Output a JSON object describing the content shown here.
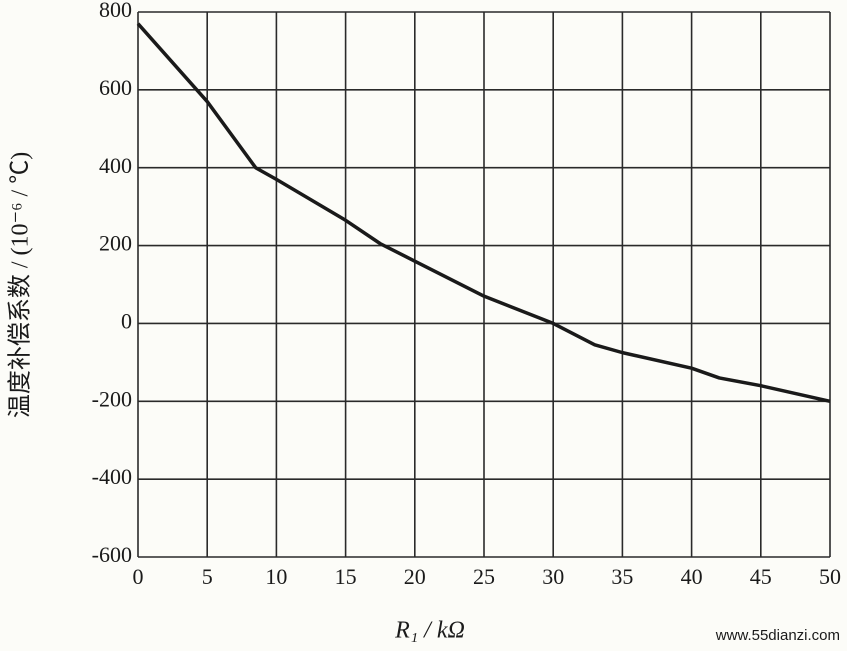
{
  "chart_data": {
    "type": "line",
    "x_label": "R₁ / kΩ",
    "y_label": "温度补偿系数 / (10⁻⁶ / ℃)",
    "watermark": "www.55dianzi.com",
    "series": [
      {
        "color": "#1a1a1a",
        "x": [
          0,
          5,
          8.5,
          10,
          15,
          17.5,
          20,
          25,
          30,
          33,
          35,
          40,
          42,
          45,
          50
        ],
        "values": [
          770,
          570,
          400,
          370,
          265,
          205,
          160,
          70,
          0,
          -55,
          -75,
          -115,
          -140,
          -160,
          -200
        ]
      }
    ],
    "xlim": [
      0,
      50
    ],
    "xticks": [
      0,
      5,
      10,
      15,
      20,
      25,
      30,
      35,
      40,
      45,
      50
    ],
    "ylim": [
      -600,
      800
    ],
    "yticks": [
      -600,
      -400,
      -200,
      0,
      200,
      400,
      600,
      800
    ],
    "grid": true
  }
}
